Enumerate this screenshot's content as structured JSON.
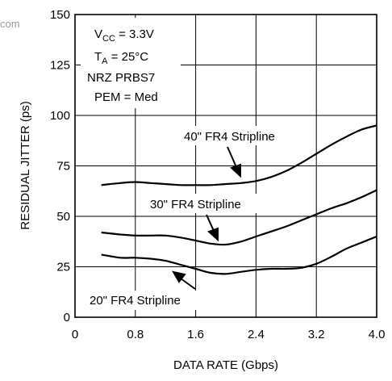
{
  "watermark": "com",
  "chart_data": {
    "type": "line",
    "xlabel": "DATA RATE (Gbps)",
    "ylabel": "RESIDUAL JITTER (ps)",
    "xlim": [
      0,
      4.0
    ],
    "ylim": [
      0,
      150
    ],
    "x_ticks": [
      "0",
      "0.8",
      "1.6",
      "2.4",
      "3.2",
      "4.0"
    ],
    "y_ticks": [
      "0",
      "25",
      "50",
      "75",
      "100",
      "125",
      "150"
    ],
    "x_tick_values": [
      0,
      0.8,
      1.6,
      2.4,
      3.2,
      4.0
    ],
    "y_tick_values": [
      0,
      25,
      50,
      75,
      100,
      125,
      150
    ],
    "grid": true,
    "conditions": {
      "vcc_main": "V",
      "vcc_sub": "CC",
      "vcc_value": " = 3.3V",
      "ta_main": "T",
      "ta_sub": "A",
      "ta_value": " = 25°C",
      "pattern": "NRZ PRBS7",
      "pem": "PEM = Med"
    },
    "series": [
      {
        "name": "40\" FR4 Stripline",
        "x": [
          0.35,
          0.6,
          0.8,
          1.0,
          1.2,
          1.4,
          1.6,
          1.8,
          2.0,
          2.2,
          2.4,
          2.6,
          2.8,
          3.0,
          3.2,
          3.4,
          3.6,
          3.8,
          4.0
        ],
        "y": [
          65.5,
          66.5,
          67,
          66.5,
          66,
          65.5,
          65.5,
          65.5,
          66,
          66.5,
          67.5,
          69.5,
          72.5,
          76.5,
          81,
          85.5,
          89.5,
          93,
          95
        ]
      },
      {
        "name": "30\" FR4 Stripline",
        "x": [
          0.35,
          0.6,
          0.8,
          1.0,
          1.2,
          1.4,
          1.6,
          1.8,
          2.0,
          2.2,
          2.4,
          2.6,
          2.8,
          3.0,
          3.2,
          3.4,
          3.6,
          3.8,
          4.0
        ],
        "y": [
          42,
          41,
          40.5,
          40.5,
          40.5,
          39.5,
          38,
          36.5,
          36,
          37.5,
          40,
          42.5,
          45,
          48,
          51,
          54,
          56.5,
          59.5,
          63
        ]
      },
      {
        "name": "20\" FR4 Stripline",
        "x": [
          0.35,
          0.6,
          0.8,
          1.0,
          1.2,
          1.4,
          1.6,
          1.8,
          2.0,
          2.2,
          2.4,
          2.6,
          2.8,
          3.0,
          3.2,
          3.4,
          3.6,
          3.8,
          4.0
        ],
        "y": [
          31,
          29.5,
          29.5,
          29,
          28,
          26,
          24,
          22,
          21.5,
          22.5,
          23.5,
          24,
          24,
          24.5,
          26.5,
          30,
          34,
          37,
          40
        ]
      }
    ]
  }
}
